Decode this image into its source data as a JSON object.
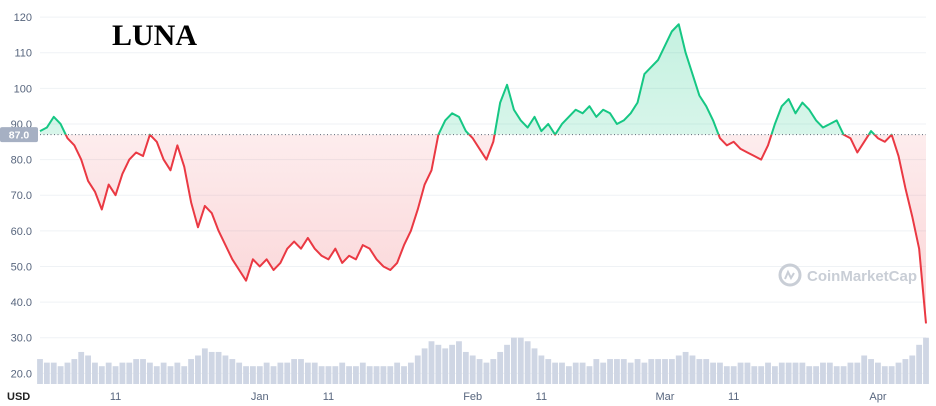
{
  "chart_data": {
    "type": "line",
    "title": "LUNA",
    "currency": "USD",
    "reference_value": 87.0,
    "reference_label": "87.0",
    "ylim": [
      17,
      122
    ],
    "y_ticks": [
      {
        "value": 20,
        "label": "20.0"
      },
      {
        "value": 30,
        "label": "30.0"
      },
      {
        "value": 40,
        "label": "40.0"
      },
      {
        "value": 50,
        "label": "50.0"
      },
      {
        "value": 60,
        "label": "60.0"
      },
      {
        "value": 70,
        "label": "70.0"
      },
      {
        "value": 80,
        "label": "80.0"
      },
      {
        "value": 90,
        "label": "90.0"
      },
      {
        "value": 100,
        "label": "100"
      },
      {
        "value": 110,
        "label": "110"
      },
      {
        "value": 120,
        "label": "120"
      }
    ],
    "x_ticks": [
      {
        "day": 11,
        "label": "11"
      },
      {
        "day": 32,
        "label": "Jan"
      },
      {
        "day": 42,
        "label": "11"
      },
      {
        "day": 63,
        "label": "Feb"
      },
      {
        "day": 73,
        "label": "11"
      },
      {
        "day": 91,
        "label": "Mar"
      },
      {
        "day": 101,
        "label": "11"
      },
      {
        "day": 122,
        "label": "Apr"
      }
    ],
    "x_range_days": [
      0,
      129
    ],
    "grid": true,
    "colors": {
      "above": "#16c784",
      "below": "#ea3943",
      "volume": "#cfd6e4",
      "grid": "#eff2f5",
      "ref_label_bg": "#a6b0c3"
    },
    "series": [
      {
        "x": [
          0,
          1,
          2,
          3,
          4,
          5,
          6,
          7,
          8,
          9,
          10,
          11,
          12,
          13,
          14,
          15,
          16,
          17,
          18,
          19,
          20,
          21,
          22,
          23,
          24,
          25,
          26,
          27,
          28,
          29,
          30,
          31,
          32,
          33,
          34,
          35,
          36,
          37,
          38,
          39,
          40,
          41,
          42,
          43,
          44,
          45,
          46,
          47,
          48,
          49,
          50,
          51,
          52,
          53,
          54,
          55,
          56,
          57,
          58,
          59,
          60,
          61,
          62,
          63,
          64,
          65,
          66,
          67,
          68,
          69,
          70,
          71,
          72,
          73,
          74,
          75,
          76,
          77,
          78,
          79,
          80,
          81,
          82,
          83,
          84,
          85,
          86,
          87,
          88,
          89,
          90,
          91,
          92,
          93,
          94,
          95,
          96,
          97,
          98,
          99,
          100,
          101,
          102,
          103,
          104,
          105,
          106,
          107,
          108,
          109,
          110,
          111,
          112,
          113,
          114,
          115,
          116,
          117,
          118,
          119,
          120,
          121,
          122,
          123,
          124,
          125,
          126,
          127,
          128,
          129
        ],
        "values": [
          88,
          89,
          92,
          90,
          86,
          84,
          80,
          74,
          71,
          66,
          73,
          70,
          76,
          80,
          82,
          81,
          87,
          85,
          80,
          77,
          84,
          78,
          68,
          61,
          67,
          65,
          60,
          56,
          52,
          49,
          46,
          52,
          50,
          52,
          49,
          51,
          55,
          57,
          55,
          58,
          55,
          53,
          52,
          55,
          51,
          53,
          52,
          56,
          55,
          52,
          50,
          49,
          51,
          56,
          60,
          66,
          73,
          77,
          87,
          91,
          93,
          92,
          88,
          86,
          83,
          80,
          85,
          96,
          101,
          94,
          91,
          89,
          92,
          88,
          90,
          87,
          90,
          92,
          94,
          93,
          95,
          92,
          94,
          93,
          90,
          91,
          93,
          96,
          104,
          106,
          108,
          112,
          116,
          118,
          110,
          104,
          98,
          95,
          91,
          86,
          84,
          85,
          83,
          82,
          81,
          80,
          84,
          90,
          95,
          97,
          93,
          96,
          94,
          91,
          89,
          90,
          91,
          87,
          86,
          82,
          85,
          88,
          86,
          85,
          87,
          81,
          72,
          64,
          55,
          34
        ]
      }
    ],
    "volume": [
      24,
      23,
      23,
      22,
      23,
      24,
      26,
      25,
      23,
      22,
      23,
      22,
      23,
      23,
      24,
      24,
      23,
      22,
      23,
      22,
      23,
      22,
      24,
      25,
      27,
      26,
      26,
      25,
      24,
      23,
      22,
      22,
      22,
      23,
      22,
      23,
      23,
      24,
      24,
      23,
      23,
      22,
      22,
      22,
      23,
      22,
      22,
      23,
      22,
      22,
      22,
      22,
      23,
      22,
      23,
      25,
      27,
      29,
      28,
      27,
      28,
      29,
      26,
      25,
      24,
      23,
      24,
      26,
      28,
      30,
      30,
      29,
      27,
      25,
      24,
      23,
      23,
      22,
      23,
      23,
      22,
      24,
      23,
      24,
      24,
      24,
      23,
      24,
      23,
      24,
      24,
      24,
      24,
      25,
      26,
      25,
      24,
      24,
      23,
      23,
      22,
      22,
      23,
      23,
      22,
      22,
      23,
      22,
      23,
      23,
      23,
      23,
      22,
      22,
      23,
      23,
      22,
      22,
      23,
      23,
      25,
      24,
      23,
      22,
      22,
      23,
      24,
      25,
      28,
      30
    ]
  },
  "watermark": {
    "text": "CoinMarketCap",
    "icon": "coinmarketcap-logo-icon"
  }
}
